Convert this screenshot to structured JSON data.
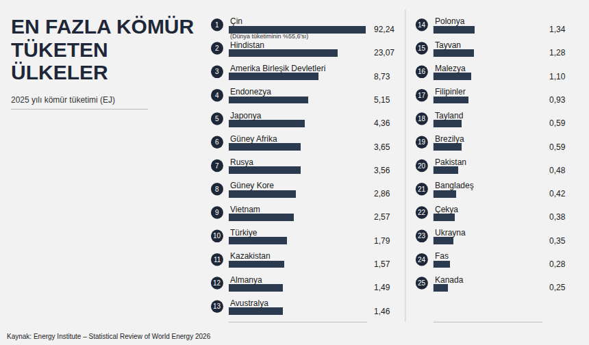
{
  "chart_data": {
    "type": "bar",
    "title": "EN FAZLA KÖMÜR TÜKETEN ÜLKELER",
    "subtitle": "2025 yılı kömür tüketimi (EJ)",
    "source": "Kaynak: Energy Institute – Statistical Review of World Energy 2026",
    "orientation": "horizontal",
    "log": "x",
    "tick_labels": false,
    "grid": false,
    "data_labels": true,
    "color": "#2c3a50",
    "xlim": [
      0.1,
      100
    ],
    "ranks": [
      1,
      2,
      3,
      4,
      5,
      6,
      7,
      8,
      9,
      10,
      11,
      12,
      13,
      14,
      15,
      16,
      17,
      18,
      19,
      20,
      21,
      22,
      23,
      24,
      25
    ],
    "categories": [
      "Çin",
      "Hindistan",
      "Amerika Birleşik Devletleri",
      "Endonezya",
      "Japonya",
      "Güney Afrika",
      "Rusya",
      "Güney Kore",
      "Vietnam",
      "Türkiye",
      "Kazakistan",
      "Almanya",
      "Avustralya",
      "Polonya",
      "Tayvan",
      "Malezya",
      "Filipinler",
      "Tayland",
      "Brezilya",
      "Pakistan",
      "Bangladeş",
      "Çekya",
      "Ukrayna",
      "Fas",
      "Kanada"
    ],
    "values": [
      92.24,
      23.07,
      8.73,
      5.15,
      4.36,
      3.65,
      3.56,
      2.86,
      2.57,
      1.79,
      1.57,
      1.49,
      1.46,
      1.34,
      1.28,
      1.1,
      0.93,
      0.59,
      0.59,
      0.48,
      0.42,
      0.38,
      0.35,
      0.28,
      0.25
    ],
    "value_labels": [
      "92,24",
      "23,07",
      "8,73",
      "5,15",
      "4,36",
      "3,65",
      "3,56",
      "2,86",
      "2,57",
      "1,79",
      "1,57",
      "1,49",
      "1,46",
      "1,34",
      "1,28",
      "1,10",
      "0,93",
      "0,59",
      "0,59",
      "0,48",
      "0,42",
      "0,38",
      "0,35",
      "0,28",
      "0,25"
    ],
    "annotations": [
      {
        "category": "Çin",
        "text": "(Dünya tüketiminin %55,6'sı)"
      }
    ]
  }
}
